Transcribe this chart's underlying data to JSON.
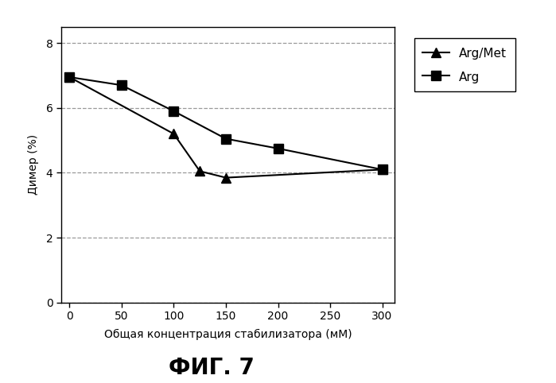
{
  "arg_met_x": [
    0,
    100,
    125,
    150,
    300
  ],
  "arg_met_y": [
    6.95,
    5.2,
    4.05,
    3.85,
    4.1
  ],
  "arg_x": [
    0,
    50,
    100,
    150,
    200,
    300
  ],
  "arg_y": [
    6.95,
    6.7,
    5.9,
    5.05,
    4.75,
    4.1
  ],
  "xlabel": "Общая концентрация стабилизатора (мМ)",
  "ylabel": "Димер (%)",
  "title": "ФИГ. 7",
  "xlim": [
    -8,
    312
  ],
  "ylim": [
    0,
    8.5
  ],
  "xticks": [
    0,
    50,
    100,
    150,
    200,
    250,
    300
  ],
  "yticks": [
    0,
    2,
    4,
    6,
    8
  ],
  "legend_arg_met": "Arg/Met",
  "legend_arg": "Arg",
  "line_color": "#000000",
  "bg_color": "#ffffff",
  "grid_color": "#999999",
  "title_fontsize": 20,
  "axis_fontsize": 10,
  "tick_fontsize": 10,
  "legend_fontsize": 11
}
